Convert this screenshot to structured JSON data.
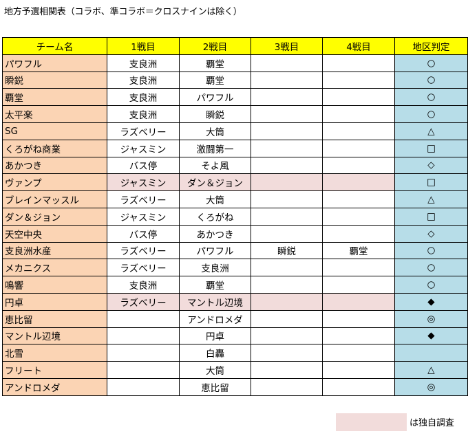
{
  "title": "地方予選相関表（コラボ、準コラボ＝クロスナインは除く）",
  "headers": [
    "チーム名",
    "1戦目",
    "2戦目",
    "3戦目",
    "4戦目",
    "地区判定"
  ],
  "rows": [
    {
      "team": "パワフル",
      "g1": "支良洲",
      "g2": "覇堂",
      "g3": "",
      "g4": "",
      "judge": "○"
    },
    {
      "team": "瞬鋭",
      "g1": "支良洲",
      "g2": "覇堂",
      "g3": "",
      "g4": "",
      "judge": "○"
    },
    {
      "team": "覇堂",
      "g1": "支良洲",
      "g2": "パワフル",
      "g3": "",
      "g4": "",
      "judge": "○"
    },
    {
      "team": "太平楽",
      "g1": "支良洲",
      "g2": "瞬鋭",
      "g3": "",
      "g4": "",
      "judge": "○"
    },
    {
      "team": "SG",
      "g1": "ラズベリー",
      "g2": "大筒",
      "g3": "",
      "g4": "",
      "judge": "△"
    },
    {
      "team": "くろがね商業",
      "g1": "ジャスミン",
      "g2": "激闘第一",
      "g3": "",
      "g4": "",
      "judge": "□"
    },
    {
      "team": "あかつき",
      "g1": "バス停",
      "g2": "そよ風",
      "g3": "",
      "g4": "",
      "judge": "◇"
    },
    {
      "team": "ヴァンプ",
      "g1": "ジャスミン",
      "g2": "ダン＆ジョン",
      "g3": "",
      "g4": "",
      "judge": "□"
    },
    {
      "team": "ブレインマッスル",
      "g1": "ラズベリー",
      "g2": "大筒",
      "g3": "",
      "g4": "",
      "judge": "△"
    },
    {
      "team": "ダン＆ジョン",
      "g1": "ジャスミン",
      "g2": "くろがね",
      "g3": "",
      "g4": "",
      "judge": "□"
    },
    {
      "team": "天空中央",
      "g1": "バス停",
      "g2": "あかつき",
      "g3": "",
      "g4": "",
      "judge": "◇"
    },
    {
      "team": "支良洲水産",
      "g1": "ラズベリー",
      "g2": "パワフル",
      "g3": "瞬鋭",
      "g4": "覇堂",
      "judge": "○"
    },
    {
      "team": "メカニクス",
      "g1": "ラズベリー",
      "g2": "支良洲",
      "g3": "",
      "g4": "",
      "judge": "○"
    },
    {
      "team": "鳴響",
      "g1": "支良洲",
      "g2": "覇堂",
      "g3": "",
      "g4": "",
      "judge": "○"
    },
    {
      "team": "円卓",
      "g1": "ラズベリー",
      "g2": "マントル辺境",
      "g3": "",
      "g4": "",
      "judge": "◆"
    },
    {
      "team": "恵比留",
      "g1": "",
      "g2": "アンドロメダ",
      "g3": "",
      "g4": "",
      "judge": "◎"
    },
    {
      "team": "マントル辺境",
      "g1": "",
      "g2": "円卓",
      "g3": "",
      "g4": "",
      "judge": "◆"
    },
    {
      "team": "北雪",
      "g1": "",
      "g2": "白轟",
      "g3": "",
      "g4": "",
      "judge": ""
    },
    {
      "team": "フリート",
      "g1": "",
      "g2": "大筒",
      "g3": "",
      "g4": "",
      "judge": "△"
    },
    {
      "team": "アンドロメダ",
      "g1": "",
      "g2": "恵比留",
      "g3": "",
      "g4": "",
      "judge": "◎"
    }
  ],
  "own_research_rows": [
    7,
    14
  ],
  "legend": {
    "text": "は独自調査"
  },
  "colors": {
    "header": "#ffff00",
    "team_column": "#fbd4b4",
    "judge_column": "#b7dde8",
    "own_research": "#f2dcdb"
  }
}
